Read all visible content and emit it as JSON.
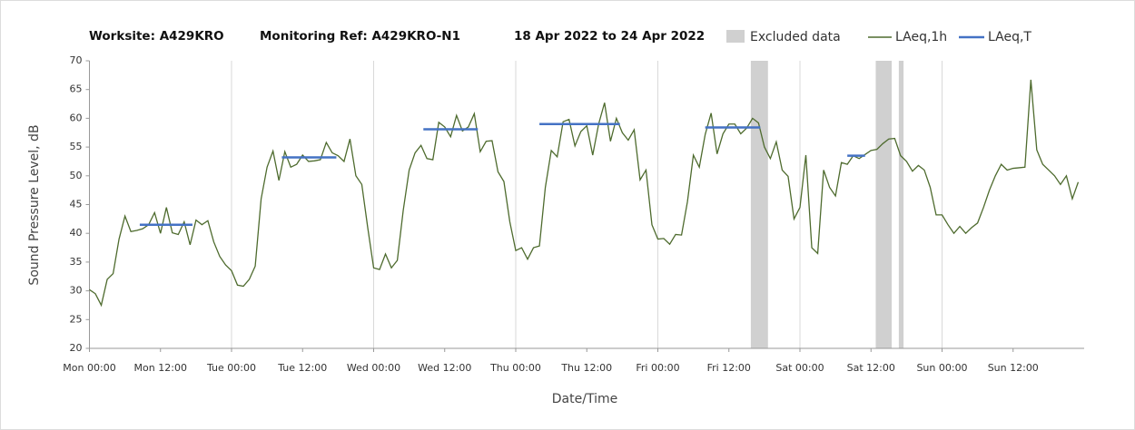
{
  "chart_data": {
    "type": "line",
    "title": [
      "Worksite: A429KRO",
      "Monitoring Ref: A429KRO-N1",
      "18 Apr 2022 to 24 Apr 2022"
    ],
    "x_label": "Date/Time",
    "y_label": "Sound Pressure Level, dB",
    "xlim": [
      0,
      168
    ],
    "ylim": [
      20,
      70
    ],
    "yticks": [
      20,
      25,
      30,
      35,
      40,
      45,
      50,
      55,
      60,
      65,
      70
    ],
    "xticks": [
      {
        "value": 0,
        "label": "Mon 00:00"
      },
      {
        "value": 12,
        "label": "Mon 12:00"
      },
      {
        "value": 24,
        "label": "Tue 00:00"
      },
      {
        "value": 36,
        "label": "Tue 12:00"
      },
      {
        "value": 48,
        "label": "Wed 00:00"
      },
      {
        "value": 60,
        "label": "Wed 12:00"
      },
      {
        "value": 72,
        "label": "Thu 00:00"
      },
      {
        "value": 84,
        "label": "Thu 12:00"
      },
      {
        "value": 96,
        "label": "Fri 00:00"
      },
      {
        "value": 108,
        "label": "Fri 12:00"
      },
      {
        "value": 120,
        "label": "Sat 00:00"
      },
      {
        "value": 132,
        "label": "Sat 12:00"
      },
      {
        "value": 144,
        "label": "Sun 00:00"
      },
      {
        "value": 156,
        "label": "Sun 12:00"
      }
    ],
    "excluded": {
      "name": "Excluded data",
      "color": "#d0d0d0",
      "ranges": [
        [
          111.7,
          114.6
        ],
        [
          132.8,
          135.5
        ],
        [
          136.7,
          137.5
        ]
      ]
    },
    "x": [
      0,
      1,
      2,
      3,
      4,
      5,
      6,
      7,
      8,
      9,
      10,
      11,
      12,
      13,
      14,
      15,
      16,
      17,
      18,
      19,
      20,
      21,
      22,
      23,
      24,
      25,
      26,
      27,
      28,
      29,
      30,
      31,
      32,
      33,
      34,
      35,
      36,
      37,
      38,
      39,
      40,
      41,
      42,
      43,
      44,
      45,
      46,
      47,
      48,
      49,
      50,
      51,
      52,
      53,
      54,
      55,
      56,
      57,
      58,
      59,
      60,
      61,
      62,
      63,
      64,
      65,
      66,
      67,
      68,
      69,
      70,
      71,
      72,
      73,
      74,
      75,
      76,
      77,
      78,
      79,
      80,
      81,
      82,
      83,
      84,
      85,
      86,
      87,
      88,
      89,
      90,
      91,
      92,
      93,
      94,
      95,
      96,
      97,
      98,
      99,
      100,
      101,
      102,
      103,
      104,
      105,
      106,
      107,
      108,
      109,
      110,
      111,
      112,
      113,
      114,
      115,
      116,
      117,
      118,
      119,
      120,
      121,
      122,
      123,
      124,
      125,
      126,
      127,
      128,
      129,
      130,
      131,
      132,
      133,
      134,
      135,
      136,
      137,
      138,
      139,
      140,
      141,
      142,
      143,
      144,
      145,
      146,
      147,
      148,
      149,
      150,
      151,
      152,
      153,
      154,
      155,
      156,
      157,
      158,
      159,
      160,
      161,
      162,
      163,
      164,
      165,
      166,
      167
    ],
    "series": [
      {
        "name": "LAeq,1h",
        "color": "#4e6b2e",
        "values": [
          30.2,
          29.5,
          27.5,
          32,
          33,
          39,
          43,
          40.3,
          40.5,
          40.8,
          41.5,
          43.6,
          40,
          44.5,
          40.1,
          39.8,
          42,
          38,
          42.3,
          41.5,
          42.2,
          38.5,
          36,
          34.5,
          33.5,
          31,
          30.8,
          32,
          34.3,
          46,
          51.5,
          54.3,
          49.2,
          54.2,
          51.5,
          52,
          53.6,
          52.5,
          52.6,
          52.8,
          55.8,
          54,
          53.5,
          52.5,
          56.4,
          50,
          48.5,
          41,
          34,
          33.7,
          36.4,
          34,
          35.3,
          44,
          51,
          54,
          55.3,
          53,
          52.8,
          59.3,
          58.5,
          56.8,
          60.5,
          57.8,
          58.5,
          60.8,
          54.2,
          56,
          56.1,
          50.7,
          49,
          42,
          37,
          37.5,
          35.5,
          37.5,
          37.8,
          48,
          54.4,
          53.3,
          59.4,
          59.8,
          55.2,
          57.7,
          58.7,
          53.6,
          59,
          62.7,
          56,
          60,
          57.5,
          56.2,
          58,
          49.3,
          51,
          41.5,
          39,
          39.1,
          38.1,
          39.8,
          39.7,
          45.5,
          53.6,
          51.5,
          57.2,
          60.9,
          53.8,
          57.3,
          59,
          59,
          57.3,
          58.3,
          60,
          59.2,
          55,
          53,
          55.9,
          51,
          49.9,
          42.5,
          44.5,
          53.6,
          37.5,
          36.5,
          51,
          48,
          46.5,
          52.3,
          52,
          53.5,
          53,
          53.7,
          54.4,
          54.6,
          55.6,
          56.4,
          56.5,
          53.5,
          52.5,
          50.8,
          51.8,
          51,
          48,
          43.2,
          43.2,
          41.5,
          40,
          41.2,
          40,
          41,
          41.8,
          44.5,
          47.5,
          50,
          52,
          51,
          51.3,
          51.4,
          51.5,
          66.7,
          54.5,
          52,
          51,
          50,
          48.5,
          50,
          46,
          48.9
        ]
      },
      {
        "name": "LAeq,T",
        "color": "#4472c4",
        "segments": [
          {
            "x": [
              8.5,
              17.4
            ],
            "value": 41.5
          },
          {
            "x": [
              32.5,
              41.7
            ],
            "value": 53.2
          },
          {
            "x": [
              56.4,
              65.6
            ],
            "value": 58.1
          },
          {
            "x": [
              76,
              89.6
            ],
            "value": 59
          },
          {
            "x": [
              104,
              113.3
            ],
            "value": 58.4
          },
          {
            "x": [
              128,
              131
            ],
            "value": 53.5
          }
        ]
      }
    ]
  }
}
